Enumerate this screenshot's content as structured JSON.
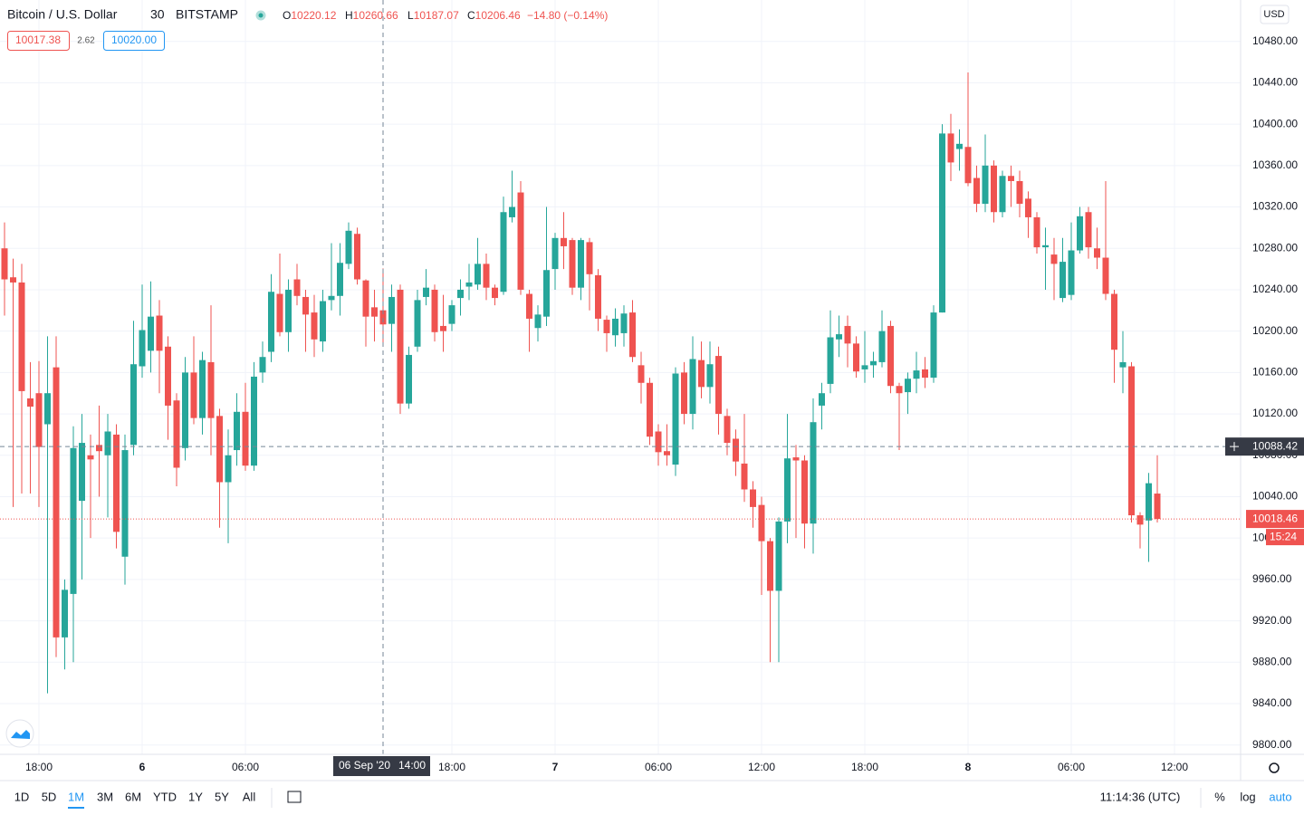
{
  "header": {
    "symbol": "Bitcoin / U.S. Dollar",
    "interval": "30",
    "exchange": "BITSTAMP",
    "change": "−14.80 (−0.14%)",
    "bid": 10017.38,
    "spread": 2.62,
    "ask": "10020.00",
    "currency": "USD",
    "ohlc_keys": [
      "O",
      "H",
      "L",
      "C"
    ]
  },
  "crosshair": {
    "price": 10088.42,
    "date": "06 Sep '20",
    "time": "14:00"
  },
  "countdown": "15:24",
  "toolbar": {
    "ranges": [
      "1D",
      "5D",
      "1M",
      "3M",
      "6M",
      "YTD",
      "1Y",
      "5Y",
      "All"
    ],
    "active": "1M",
    "clock": "11:14:36 (UTC)",
    "percent": "%",
    "log": "log",
    "auto": "auto"
  },
  "chart_data": {
    "type": "candlestick",
    "up_color": "#26a69a",
    "down_color": "#ef5350",
    "ylim": [
      9791,
      10520
    ],
    "yticks": [
      {
        "value": 10480,
        "label": "10480.00"
      },
      {
        "value": 10440,
        "label": "10440.00"
      },
      {
        "value": 10400,
        "label": "10400.00"
      },
      {
        "value": 10360,
        "label": "10360.00"
      },
      {
        "value": 10320,
        "label": "10320.00"
      },
      {
        "value": 10280,
        "label": "10280.00"
      },
      {
        "value": 10240,
        "label": "10240.00"
      },
      {
        "value": 10200,
        "label": "10200.00"
      },
      {
        "value": 10160,
        "label": "10160.00"
      },
      {
        "value": 10120,
        "label": "10120.00"
      },
      {
        "value": 10080,
        "label": "10080.00"
      },
      {
        "value": 10040,
        "label": "10040.00"
      },
      {
        "value": 10000,
        "label": "10000.00"
      },
      {
        "value": 9960,
        "label": "9960.00"
      },
      {
        "value": 9920,
        "label": "9920.00"
      },
      {
        "value": 9880,
        "label": "9880.00"
      },
      {
        "value": 9840,
        "label": "9840.00"
      },
      {
        "value": 9800,
        "label": "9800.00"
      }
    ],
    "xticks": [
      {
        "value": 4,
        "label": "18:00"
      },
      {
        "value": 16,
        "label": "6"
      },
      {
        "value": 28,
        "label": "06:00"
      },
      {
        "value": 52,
        "label": "18:00"
      },
      {
        "value": 64,
        "label": "7"
      },
      {
        "value": 76,
        "label": "06:00"
      },
      {
        "value": 88,
        "label": "12:00"
      },
      {
        "value": 100,
        "label": "18:00"
      },
      {
        "value": 112,
        "label": "8"
      },
      {
        "value": 124,
        "label": "06:00"
      },
      {
        "value": 136,
        "label": "12:00"
      }
    ],
    "grid": true,
    "candles": [
      {
        "o": 10280,
        "h": 10305,
        "l": 10215,
        "c": 10250
      },
      {
        "o": 10252,
        "h": 10270,
        "l": 10030,
        "c": 10247
      },
      {
        "o": 10247,
        "h": 10265,
        "l": 10043,
        "c": 10142
      },
      {
        "o": 10135,
        "h": 10170,
        "l": 10043,
        "c": 10127
      },
      {
        "o": 10140,
        "h": 10171,
        "l": 10030,
        "c": 10088
      },
      {
        "o": 10110,
        "h": 10195,
        "l": 9850,
        "c": 10140
      },
      {
        "o": 10165,
        "h": 10195,
        "l": 9885,
        "c": 9904
      },
      {
        "o": 9904,
        "h": 9960,
        "l": 9873,
        "c": 9950
      },
      {
        "o": 9946,
        "h": 10108,
        "l": 9880,
        "c": 10087
      },
      {
        "o": 10036,
        "h": 10120,
        "l": 9960,
        "c": 10092
      },
      {
        "o": 10080,
        "h": 10100,
        "l": 10000,
        "c": 10076
      },
      {
        "o": 10090,
        "h": 10128,
        "l": 10040,
        "c": 10084
      },
      {
        "o": 10080,
        "h": 10120,
        "l": 10020,
        "c": 10103
      },
      {
        "o": 10100,
        "h": 10110,
        "l": 9990,
        "c": 10006
      },
      {
        "o": 9982,
        "h": 10100,
        "l": 9955,
        "c": 10085
      },
      {
        "o": 10090,
        "h": 10210,
        "l": 10080,
        "c": 10168
      },
      {
        "o": 10166,
        "h": 10245,
        "l": 10155,
        "c": 10201
      },
      {
        "o": 10181,
        "h": 10248,
        "l": 10160,
        "c": 10214
      },
      {
        "o": 10215,
        "h": 10230,
        "l": 10140,
        "c": 10181
      },
      {
        "o": 10185,
        "h": 10195,
        "l": 10095,
        "c": 10128
      },
      {
        "o": 10133,
        "h": 10140,
        "l": 10050,
        "c": 10068
      },
      {
        "o": 10087,
        "h": 10175,
        "l": 10075,
        "c": 10160
      },
      {
        "o": 10160,
        "h": 10195,
        "l": 10110,
        "c": 10116
      },
      {
        "o": 10116,
        "h": 10180,
        "l": 10100,
        "c": 10172
      },
      {
        "o": 10170,
        "h": 10225,
        "l": 10080,
        "c": 10116
      },
      {
        "o": 10118,
        "h": 10125,
        "l": 10010,
        "c": 10054
      },
      {
        "o": 10054,
        "h": 10105,
        "l": 9995,
        "c": 10080
      },
      {
        "o": 10085,
        "h": 10140,
        "l": 10070,
        "c": 10122
      },
      {
        "o": 10122,
        "h": 10150,
        "l": 10065,
        "c": 10070
      },
      {
        "o": 10070,
        "h": 10170,
        "l": 10065,
        "c": 10156
      },
      {
        "o": 10160,
        "h": 10190,
        "l": 10150,
        "c": 10175
      },
      {
        "o": 10180,
        "h": 10255,
        "l": 10170,
        "c": 10238
      },
      {
        "o": 10236,
        "h": 10275,
        "l": 10195,
        "c": 10199
      },
      {
        "o": 10199,
        "h": 10250,
        "l": 10180,
        "c": 10240
      },
      {
        "o": 10250,
        "h": 10265,
        "l": 10225,
        "c": 10234
      },
      {
        "o": 10233,
        "h": 10240,
        "l": 10180,
        "c": 10216
      },
      {
        "o": 10218,
        "h": 10235,
        "l": 10175,
        "c": 10192
      },
      {
        "o": 10190,
        "h": 10240,
        "l": 10180,
        "c": 10229
      },
      {
        "o": 10230,
        "h": 10285,
        "l": 10220,
        "c": 10234
      },
      {
        "o": 10234,
        "h": 10285,
        "l": 10215,
        "c": 10266
      },
      {
        "o": 10265,
        "h": 10305,
        "l": 10260,
        "c": 10297
      },
      {
        "o": 10294,
        "h": 10300,
        "l": 10245,
        "c": 10250
      },
      {
        "o": 10249,
        "h": 10250,
        "l": 10185,
        "c": 10214
      },
      {
        "o": 10223,
        "h": 10240,
        "l": 10190,
        "c": 10214
      },
      {
        "o": 10220.12,
        "h": 10260.66,
        "l": 10187.07,
        "c": 10206.46
      },
      {
        "o": 10207,
        "h": 10245,
        "l": 10180,
        "c": 10233
      },
      {
        "o": 10240,
        "h": 10245,
        "l": 10120,
        "c": 10130
      },
      {
        "o": 10130,
        "h": 10185,
        "l": 10125,
        "c": 10177
      },
      {
        "o": 10185,
        "h": 10240,
        "l": 10180,
        "c": 10230
      },
      {
        "o": 10233,
        "h": 10260,
        "l": 10225,
        "c": 10242
      },
      {
        "o": 10240,
        "h": 10245,
        "l": 10190,
        "c": 10199
      },
      {
        "o": 10205,
        "h": 10235,
        "l": 10180,
        "c": 10200
      },
      {
        "o": 10207,
        "h": 10230,
        "l": 10200,
        "c": 10225
      },
      {
        "o": 10232,
        "h": 10250,
        "l": 10215,
        "c": 10240
      },
      {
        "o": 10243,
        "h": 10265,
        "l": 10230,
        "c": 10247
      },
      {
        "o": 10245,
        "h": 10290,
        "l": 10240,
        "c": 10265
      },
      {
        "o": 10265,
        "h": 10275,
        "l": 10230,
        "c": 10242
      },
      {
        "o": 10242,
        "h": 10245,
        "l": 10225,
        "c": 10232
      },
      {
        "o": 10238,
        "h": 10330,
        "l": 10235,
        "c": 10315
      },
      {
        "o": 10310,
        "h": 10355,
        "l": 10305,
        "c": 10320
      },
      {
        "o": 10334,
        "h": 10345,
        "l": 10235,
        "c": 10240
      },
      {
        "o": 10236,
        "h": 10240,
        "l": 10180,
        "c": 10212
      },
      {
        "o": 10203,
        "h": 10225,
        "l": 10190,
        "c": 10216
      },
      {
        "o": 10214,
        "h": 10320,
        "l": 10205,
        "c": 10259
      },
      {
        "o": 10260,
        "h": 10295,
        "l": 10240,
        "c": 10290
      },
      {
        "o": 10290,
        "h": 10315,
        "l": 10260,
        "c": 10282
      },
      {
        "o": 10288,
        "h": 10290,
        "l": 10235,
        "c": 10242
      },
      {
        "o": 10242,
        "h": 10290,
        "l": 10230,
        "c": 10288
      },
      {
        "o": 10286,
        "h": 10290,
        "l": 10220,
        "c": 10255
      },
      {
        "o": 10254,
        "h": 10260,
        "l": 10200,
        "c": 10212
      },
      {
        "o": 10211,
        "h": 10215,
        "l": 10180,
        "c": 10198
      },
      {
        "o": 10196,
        "h": 10222,
        "l": 10185,
        "c": 10212
      },
      {
        "o": 10198,
        "h": 10225,
        "l": 10185,
        "c": 10217
      },
      {
        "o": 10218,
        "h": 10230,
        "l": 10170,
        "c": 10175
      },
      {
        "o": 10167,
        "h": 10180,
        "l": 10130,
        "c": 10150
      },
      {
        "o": 10150,
        "h": 10155,
        "l": 10090,
        "c": 10098
      },
      {
        "o": 10103,
        "h": 10110,
        "l": 10070,
        "c": 10083
      },
      {
        "o": 10084,
        "h": 10110,
        "l": 10070,
        "c": 10080
      },
      {
        "o": 10071,
        "h": 10165,
        "l": 10060,
        "c": 10159
      },
      {
        "o": 10160,
        "h": 10170,
        "l": 10110,
        "c": 10120
      },
      {
        "o": 10120,
        "h": 10195,
        "l": 10105,
        "c": 10173
      },
      {
        "o": 10172,
        "h": 10190,
        "l": 10135,
        "c": 10146
      },
      {
        "o": 10146,
        "h": 10190,
        "l": 10130,
        "c": 10168
      },
      {
        "o": 10176,
        "h": 10185,
        "l": 10100,
        "c": 10120
      },
      {
        "o": 10118,
        "h": 10125,
        "l": 10080,
        "c": 10092
      },
      {
        "o": 10096,
        "h": 10105,
        "l": 10060,
        "c": 10074
      },
      {
        "o": 10072,
        "h": 10120,
        "l": 10035,
        "c": 10047
      },
      {
        "o": 10047,
        "h": 10055,
        "l": 10010,
        "c": 10030
      },
      {
        "o": 10032,
        "h": 10040,
        "l": 9945,
        "c": 9997
      },
      {
        "o": 9997,
        "h": 10000,
        "l": 9880,
        "c": 9949
      },
      {
        "o": 9949,
        "h": 10020,
        "l": 9880,
        "c": 10016
      },
      {
        "o": 10016,
        "h": 10120,
        "l": 9995,
        "c": 10077
      },
      {
        "o": 10078,
        "h": 10090,
        "l": 10000,
        "c": 10075
      },
      {
        "o": 10075,
        "h": 10080,
        "l": 9990,
        "c": 10014
      },
      {
        "o": 10014,
        "h": 10135,
        "l": 9985,
        "c": 10112
      },
      {
        "o": 10128,
        "h": 10150,
        "l": 10105,
        "c": 10140
      },
      {
        "o": 10149,
        "h": 10220,
        "l": 10140,
        "c": 10194
      },
      {
        "o": 10192,
        "h": 10215,
        "l": 10175,
        "c": 10197
      },
      {
        "o": 10205,
        "h": 10215,
        "l": 10165,
        "c": 10188
      },
      {
        "o": 10188,
        "h": 10195,
        "l": 10155,
        "c": 10161
      },
      {
        "o": 10163,
        "h": 10200,
        "l": 10150,
        "c": 10167
      },
      {
        "o": 10167,
        "h": 10180,
        "l": 10155,
        "c": 10171
      },
      {
        "o": 10170,
        "h": 10220,
        "l": 10165,
        "c": 10200
      },
      {
        "o": 10205,
        "h": 10210,
        "l": 10140,
        "c": 10147
      },
      {
        "o": 10147,
        "h": 10150,
        "l": 10085,
        "c": 10140
      },
      {
        "o": 10141,
        "h": 10160,
        "l": 10120,
        "c": 10154
      },
      {
        "o": 10154,
        "h": 10180,
        "l": 10140,
        "c": 10162
      },
      {
        "o": 10163,
        "h": 10175,
        "l": 10145,
        "c": 10155
      },
      {
        "o": 10155,
        "h": 10225,
        "l": 10150,
        "c": 10218
      },
      {
        "o": 10218,
        "h": 10400,
        "l": 10218,
        "c": 10391
      },
      {
        "o": 10391,
        "h": 10410,
        "l": 10345,
        "c": 10363
      },
      {
        "o": 10376,
        "h": 10395,
        "l": 10355,
        "c": 10381
      },
      {
        "o": 10378,
        "h": 10450,
        "l": 10340,
        "c": 10343
      },
      {
        "o": 10348,
        "h": 10360,
        "l": 10315,
        "c": 10323
      },
      {
        "o": 10323,
        "h": 10390,
        "l": 10315,
        "c": 10360
      },
      {
        "o": 10360,
        "h": 10365,
        "l": 10305,
        "c": 10315
      },
      {
        "o": 10315,
        "h": 10355,
        "l": 10310,
        "c": 10350
      },
      {
        "o": 10350,
        "h": 10360,
        "l": 10320,
        "c": 10345
      },
      {
        "o": 10345,
        "h": 10355,
        "l": 10310,
        "c": 10323
      },
      {
        "o": 10328,
        "h": 10335,
        "l": 10290,
        "c": 10310
      },
      {
        "o": 10310,
        "h": 10315,
        "l": 10275,
        "c": 10281
      },
      {
        "o": 10281,
        "h": 10300,
        "l": 10240,
        "c": 10283
      },
      {
        "o": 10274,
        "h": 10290,
        "l": 10230,
        "c": 10265
      },
      {
        "o": 10232,
        "h": 10290,
        "l": 10228,
        "c": 10267
      },
      {
        "o": 10235,
        "h": 10305,
        "l": 10230,
        "c": 10278
      },
      {
        "o": 10278,
        "h": 10320,
        "l": 10275,
        "c": 10311
      },
      {
        "o": 10315,
        "h": 10320,
        "l": 10270,
        "c": 10281
      },
      {
        "o": 10280,
        "h": 10300,
        "l": 10260,
        "c": 10271
      },
      {
        "o": 10271,
        "h": 10345,
        "l": 10230,
        "c": 10236
      },
      {
        "o": 10236,
        "h": 10240,
        "l": 10150,
        "c": 10182
      },
      {
        "o": 10165,
        "h": 10200,
        "l": 10140,
        "c": 10170
      },
      {
        "o": 10166,
        "h": 10170,
        "l": 10015,
        "c": 10022
      },
      {
        "o": 10022,
        "h": 10025,
        "l": 9990,
        "c": 10013
      },
      {
        "o": 10017,
        "h": 10063,
        "l": 9977,
        "c": 10053
      },
      {
        "o": 10043,
        "h": 10080,
        "l": 10015,
        "c": 10018.46
      }
    ]
  }
}
